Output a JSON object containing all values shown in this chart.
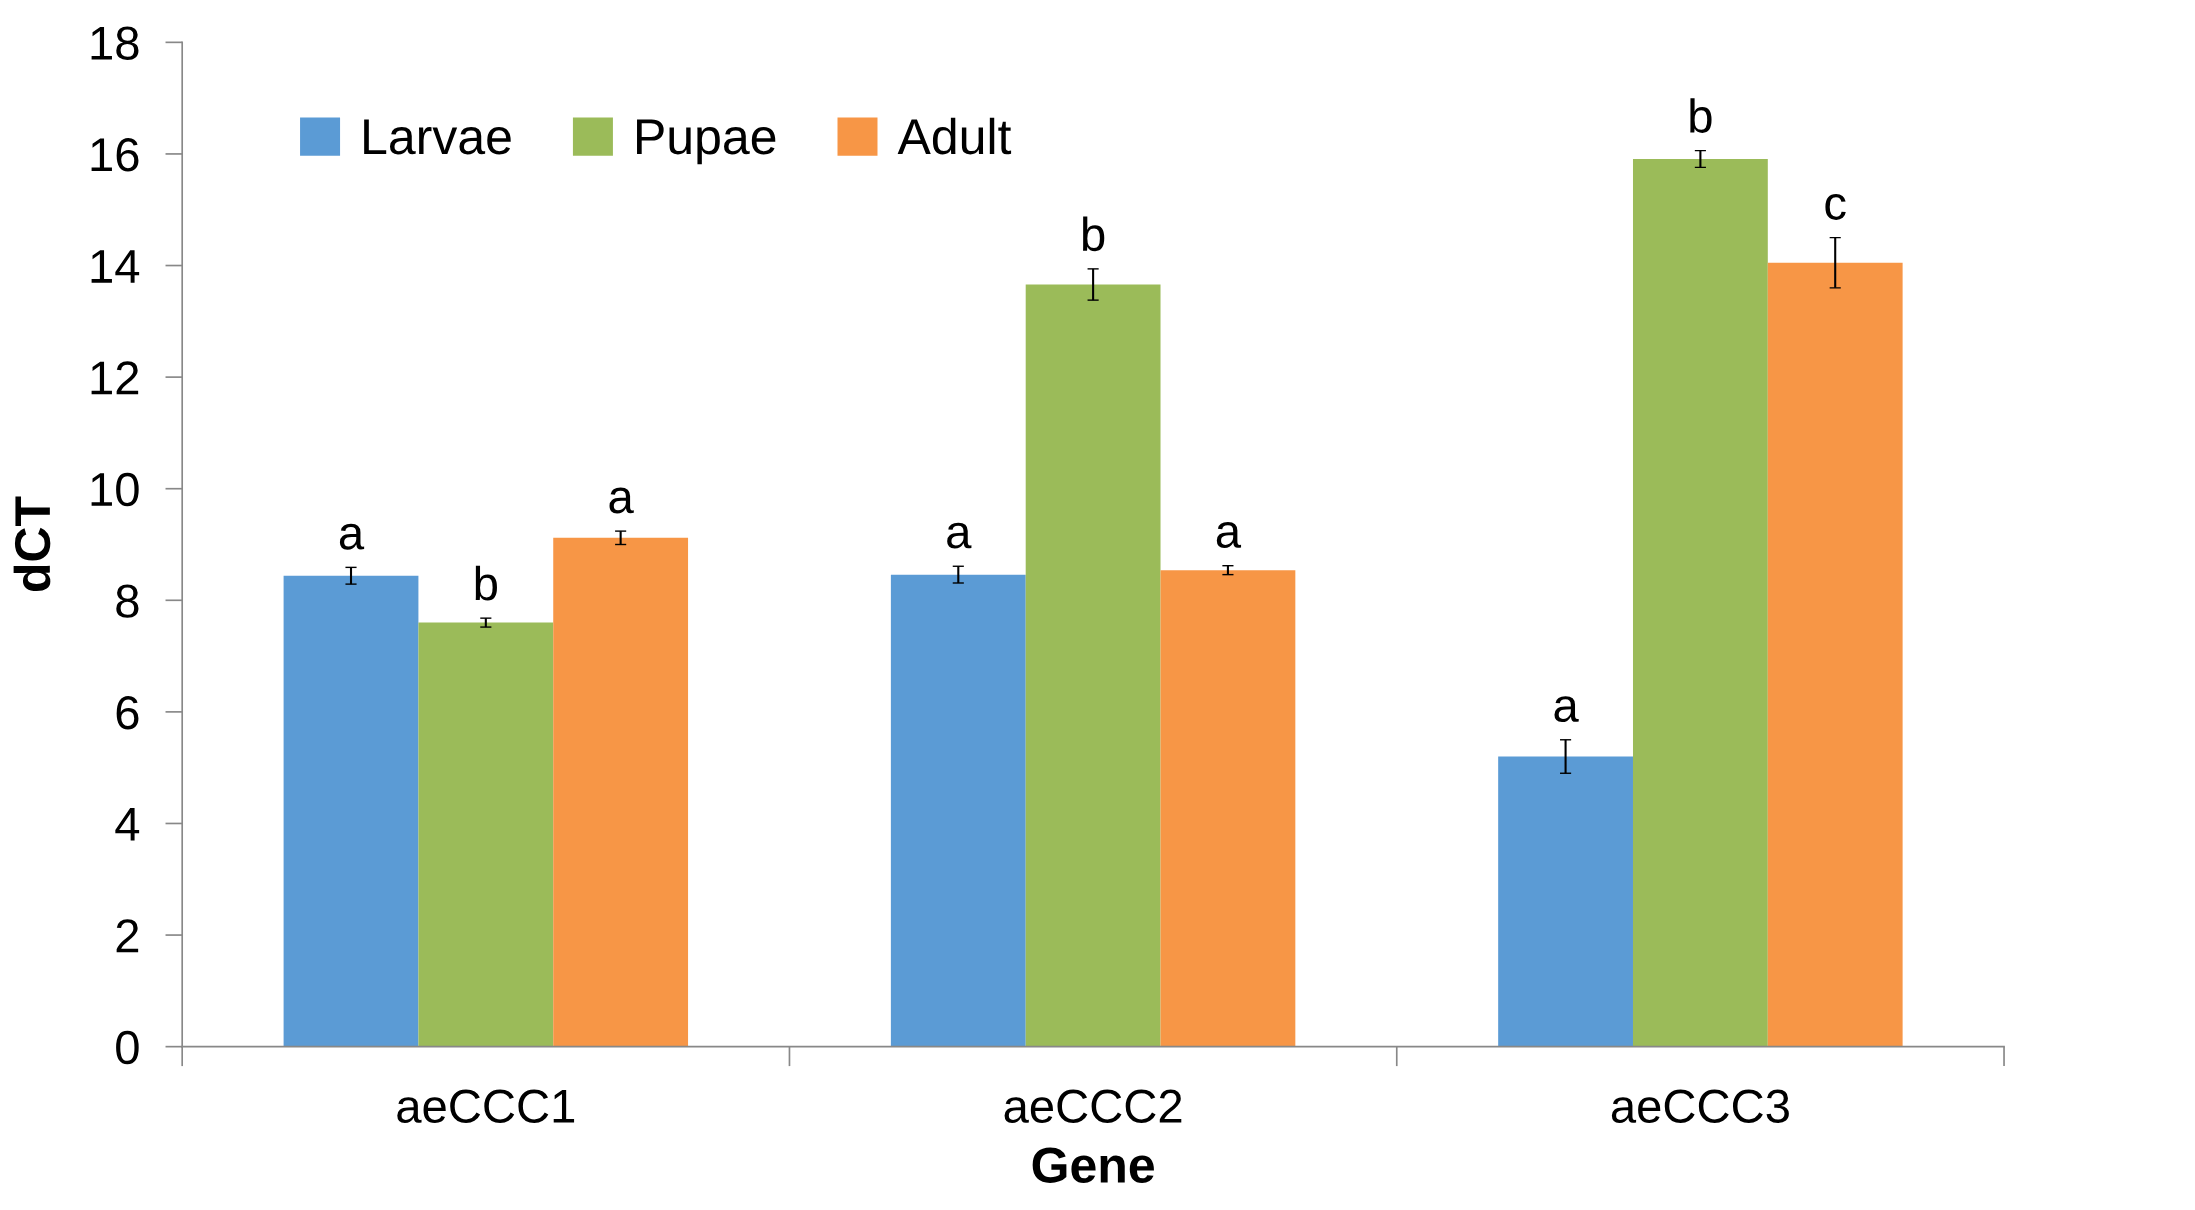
{
  "chart_data": {
    "type": "bar",
    "xlabel": "Gene",
    "ylabel": "dCT",
    "categories": [
      "aeCCC1",
      "aeCCC2",
      "aeCCC3"
    ],
    "series": [
      {
        "name": "Larvae",
        "color": "#5b9bd5",
        "values": [
          8.44,
          8.46,
          5.2
        ],
        "errors": [
          0.15,
          0.15,
          0.3
        ],
        "value_labels": [
          "a",
          "a",
          "a"
        ]
      },
      {
        "name": "Pupae",
        "color": "#9bbb59",
        "values": [
          7.6,
          13.66,
          15.91
        ],
        "errors": [
          0.08,
          0.28,
          0.15
        ],
        "value_labels": [
          "b",
          "b",
          "b"
        ]
      },
      {
        "name": "Adult",
        "color": "#f79646",
        "values": [
          9.12,
          8.54,
          14.05
        ],
        "errors": [
          0.12,
          0.08,
          0.45
        ],
        "value_labels": [
          "a",
          "a",
          "c"
        ]
      }
    ],
    "ylim": [
      0,
      18
    ],
    "yticks": [
      0,
      2,
      4,
      6,
      8,
      10,
      12,
      14,
      16,
      18
    ],
    "grid": false,
    "legend": "top left"
  }
}
